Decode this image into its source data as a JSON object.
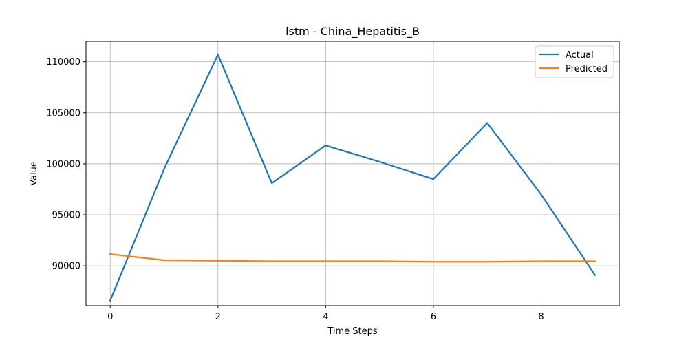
{
  "chart_data": {
    "type": "line",
    "title": "lstm - China_Hepatitis_B",
    "xlabel": "Time Steps",
    "ylabel": "Value",
    "x": [
      0,
      1,
      2,
      3,
      4,
      5,
      6,
      7,
      8,
      9
    ],
    "xlim": [
      -0.45,
      9.45
    ],
    "ylim": [
      86100,
      112000
    ],
    "xticks": [
      0,
      2,
      4,
      6,
      8
    ],
    "xtick_labels": [
      "0",
      "2",
      "4",
      "6",
      "8"
    ],
    "yticks": [
      90000,
      95000,
      100000,
      105000,
      110000
    ],
    "ytick_labels": [
      "90000",
      "95000",
      "100000",
      "105000",
      "110000"
    ],
    "grid": true,
    "legend_position": "top-right",
    "series": [
      {
        "name": "Actual",
        "color": "#1f77b4",
        "values": [
          86600,
          99500,
          110700,
          98100,
          101800,
          100200,
          98500,
          104000,
          97000,
          89100
        ]
      },
      {
        "name": "Predicted",
        "color": "#ff7f0e",
        "values": [
          91150,
          90550,
          90500,
          90450,
          90450,
          90450,
          90400,
          90400,
          90450,
          90450
        ]
      }
    ]
  }
}
